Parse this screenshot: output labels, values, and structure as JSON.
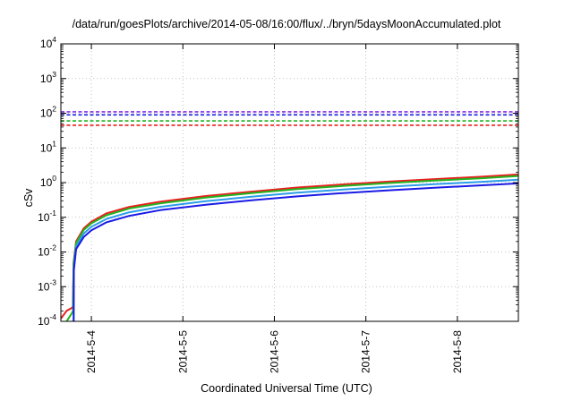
{
  "chart_data": {
    "type": "line",
    "title": "/data/run/goesPlots/archive/2014-05-08/16:00/flux/../bryn/5daysMoonAccumulated.plot",
    "xlabel": "Coordinated Universal Time (UTC)",
    "ylabel": "cSv",
    "yscale": "log",
    "ylim": [
      0.0001,
      10000
    ],
    "y_ticks": [
      {
        "base": "10",
        "exp": "-4",
        "value": 0.0001
      },
      {
        "base": "10",
        "exp": "-3",
        "value": 0.001
      },
      {
        "base": "10",
        "exp": "-2",
        "value": 0.01
      },
      {
        "base": "10",
        "exp": "-1",
        "value": 0.1
      },
      {
        "base": "10",
        "exp": "0",
        "value": 1
      },
      {
        "base": "10",
        "exp": "1",
        "value": 10
      },
      {
        "base": "10",
        "exp": "2",
        "value": 100
      },
      {
        "base": "10",
        "exp": "3",
        "value": 1000
      },
      {
        "base": "10",
        "exp": "4",
        "value": 10000
      }
    ],
    "xlim": [
      "2014-05-03 16:00",
      "2014-05-08 16:00"
    ],
    "x_ticks": [
      "2014-5-4",
      "2014-5-5",
      "2014-5-6",
      "2014-5-7",
      "2014-5-8"
    ],
    "grid": true,
    "series": [
      {
        "color": "#e8201e",
        "style": "solid",
        "points": [
          [
            "2014-05-03 16:00",
            0.00012
          ],
          [
            "2014-05-03 17:30",
            0.0002
          ],
          [
            "2014-05-03 19:00",
            0.00025
          ],
          [
            "2014-05-03 19:10",
            0.00028
          ],
          [
            "2014-05-03 19:20",
            0.005
          ],
          [
            "2014-05-03 20:00",
            0.02
          ],
          [
            "2014-05-03 22:00",
            0.048
          ],
          [
            "2014-05-04 00:00",
            0.075
          ],
          [
            "2014-05-04 04:00",
            0.13
          ],
          [
            "2014-05-04 10:00",
            0.2
          ],
          [
            "2014-05-04 18:00",
            0.28
          ],
          [
            "2014-05-05 06:00",
            0.41
          ],
          [
            "2014-05-05 18:00",
            0.55
          ],
          [
            "2014-05-06 06:00",
            0.72
          ],
          [
            "2014-05-06 18:00",
            0.89
          ],
          [
            "2014-05-07 06:00",
            1.07
          ],
          [
            "2014-05-07 18:00",
            1.26
          ],
          [
            "2014-05-08 06:00",
            1.47
          ],
          [
            "2014-05-08 16:00",
            1.72
          ]
        ]
      },
      {
        "color": "#21b421",
        "style": "solid",
        "points": [
          [
            "2014-05-03 16:00",
            5e-05
          ],
          [
            "2014-05-03 17:30",
            0.0001
          ],
          [
            "2014-05-03 19:00",
            0.00018
          ],
          [
            "2014-05-03 19:10",
            0.0002
          ],
          [
            "2014-05-03 19:20",
            0.0045
          ],
          [
            "2014-05-03 20:00",
            0.018
          ],
          [
            "2014-05-03 22:00",
            0.043
          ],
          [
            "2014-05-04 00:00",
            0.067
          ],
          [
            "2014-05-04 04:00",
            0.115
          ],
          [
            "2014-05-04 10:00",
            0.18
          ],
          [
            "2014-05-04 18:00",
            0.25
          ],
          [
            "2014-05-05 06:00",
            0.37
          ],
          [
            "2014-05-05 18:00",
            0.5
          ],
          [
            "2014-05-06 06:00",
            0.65
          ],
          [
            "2014-05-06 18:00",
            0.8
          ],
          [
            "2014-05-07 06:00",
            0.97
          ],
          [
            "2014-05-07 18:00",
            1.14
          ],
          [
            "2014-05-08 06:00",
            1.33
          ],
          [
            "2014-05-08 16:00",
            1.55
          ]
        ]
      },
      {
        "color": "#2b9de8",
        "style": "solid",
        "points": [
          [
            "2014-05-03 19:20",
            5e-05
          ],
          [
            "2014-05-03 19:25",
            0.0035
          ],
          [
            "2014-05-03 20:00",
            0.014
          ],
          [
            "2014-05-03 22:00",
            0.034
          ],
          [
            "2014-05-04 00:00",
            0.053
          ],
          [
            "2014-05-04 04:00",
            0.09
          ],
          [
            "2014-05-04 10:00",
            0.14
          ],
          [
            "2014-05-04 18:00",
            0.2
          ],
          [
            "2014-05-05 06:00",
            0.29
          ],
          [
            "2014-05-05 18:00",
            0.39
          ],
          [
            "2014-05-06 06:00",
            0.51
          ],
          [
            "2014-05-06 18:00",
            0.63
          ],
          [
            "2014-05-07 06:00",
            0.76
          ],
          [
            "2014-05-07 18:00",
            0.9
          ],
          [
            "2014-05-08 06:00",
            1.05
          ],
          [
            "2014-05-08 16:00",
            1.22
          ]
        ]
      },
      {
        "color": "#1a1ae6",
        "style": "solid",
        "points": [
          [
            "2014-05-03 19:20",
            5e-05
          ],
          [
            "2014-05-03 19:25",
            0.003
          ],
          [
            "2014-05-03 20:00",
            0.012
          ],
          [
            "2014-05-03 22:00",
            0.027
          ],
          [
            "2014-05-04 00:00",
            0.042
          ],
          [
            "2014-05-04 04:00",
            0.072
          ],
          [
            "2014-05-04 10:00",
            0.11
          ],
          [
            "2014-05-04 18:00",
            0.16
          ],
          [
            "2014-05-05 06:00",
            0.23
          ],
          [
            "2014-05-05 18:00",
            0.31
          ],
          [
            "2014-05-06 06:00",
            0.4
          ],
          [
            "2014-05-06 18:00",
            0.5
          ],
          [
            "2014-05-07 06:00",
            0.6
          ],
          [
            "2014-05-07 18:00",
            0.71
          ],
          [
            "2014-05-08 06:00",
            0.83
          ],
          [
            "2014-05-08 16:00",
            0.95
          ]
        ]
      },
      {
        "color": "#e8201e",
        "style": "dashed",
        "value": 45
      },
      {
        "color": "#21b421",
        "style": "dashed",
        "value": 60
      },
      {
        "color": "#1a1ae6",
        "style": "dashed",
        "value": 90
      },
      {
        "color": "#8a2be2",
        "style": "dashed",
        "value": 110
      }
    ]
  }
}
